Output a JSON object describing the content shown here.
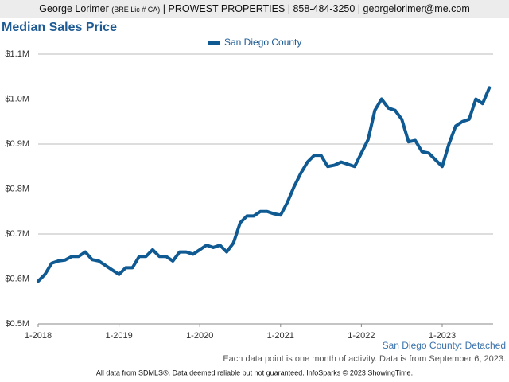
{
  "header": {
    "name": "George Lorimer",
    "license": "(BRE Lic # CA)",
    "details": "| PROWEST PROPERTIES | 858-484-3250 | georgelorimer@me.com"
  },
  "chart_data": {
    "type": "line",
    "title": "Median Sales Price",
    "categories": [
      "1-2018",
      null,
      null,
      null,
      null,
      null,
      null,
      null,
      null,
      null,
      null,
      null,
      "1-2019",
      null,
      null,
      null,
      null,
      null,
      null,
      null,
      null,
      null,
      null,
      null,
      "1-2020",
      null,
      null,
      null,
      null,
      null,
      null,
      null,
      null,
      null,
      null,
      null,
      "1-2021",
      null,
      null,
      null,
      null,
      null,
      null,
      null,
      null,
      null,
      null,
      null,
      "1-2022",
      null,
      null,
      null,
      null,
      null,
      null,
      null,
      null,
      null,
      null,
      null,
      "1-2023",
      null,
      null,
      null,
      null,
      null,
      null,
      null
    ],
    "series": [
      {
        "name": "San Diego County",
        "color": "#0f5a92",
        "values": [
          595000,
          610000,
          635000,
          640000,
          642000,
          650000,
          650000,
          660000,
          643000,
          640000,
          630000,
          620000,
          610000,
          625000,
          625000,
          650000,
          650000,
          665000,
          650000,
          650000,
          640000,
          660000,
          660000,
          655000,
          665000,
          675000,
          670000,
          675000,
          660000,
          680000,
          725000,
          740000,
          740000,
          750000,
          750000,
          745000,
          742000,
          770000,
          805000,
          835000,
          860000,
          875000,
          875000,
          850000,
          853000,
          860000,
          855000,
          850000,
          880000,
          910000,
          975000,
          1000000,
          980000,
          975000,
          955000,
          905000,
          908000,
          883000,
          880000,
          865000,
          850000,
          900000,
          940000,
          950000,
          955000,
          1000000,
          990000,
          1025000
        ]
      }
    ],
    "ylim": [
      500000,
      1100000
    ],
    "yticks": [
      {
        "value": 500000,
        "label": "$0.5M"
      },
      {
        "value": 600000,
        "label": "$0.6M"
      },
      {
        "value": 700000,
        "label": "$0.7M"
      },
      {
        "value": 800000,
        "label": "$0.8M"
      },
      {
        "value": 900000,
        "label": "$0.9M"
      },
      {
        "value": 1000000,
        "label": "$1.0M"
      },
      {
        "value": 1100000,
        "label": "$1.1M"
      }
    ],
    "grid": true,
    "subtitle": "San Diego County: Detached",
    "note": "Each data point is one month of activity. Data is from September 6, 2023.",
    "footer": "All data from SDMLS®. Data deemed reliable but not guaranteed. InfoSparks © 2023 ShowingTime."
  }
}
